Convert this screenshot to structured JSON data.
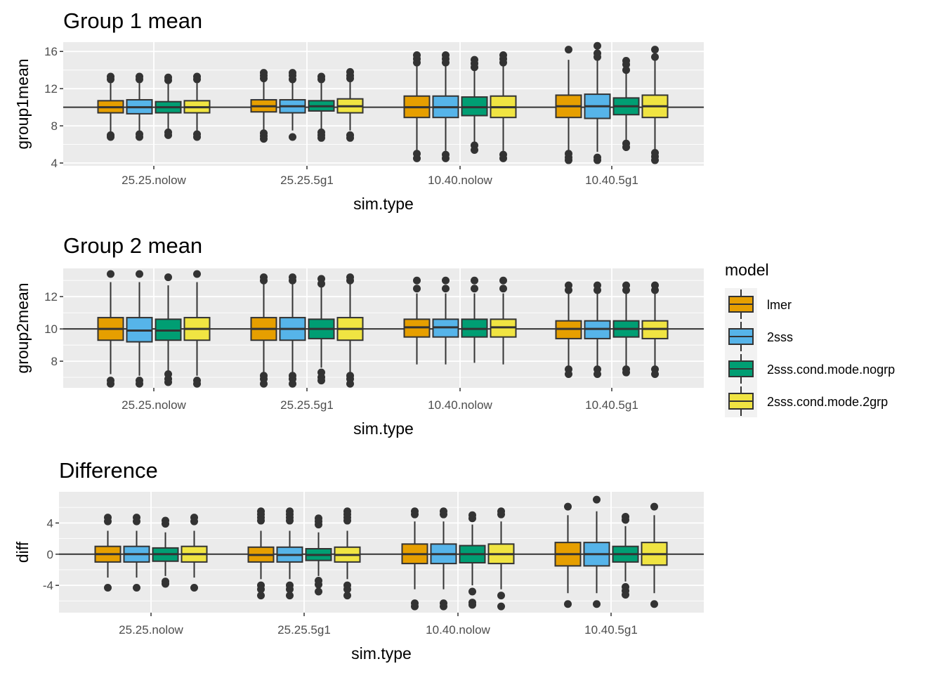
{
  "legend": {
    "title": "model",
    "items": [
      {
        "label": "lmer",
        "color": "#E69F00"
      },
      {
        "label": "2sss",
        "color": "#56B4E9"
      },
      {
        "label": "2sss.cond.mode.nogrp",
        "color": "#009E73"
      },
      {
        "label": "2sss.cond.mode.2grp",
        "color": "#F0E442"
      }
    ]
  },
  "chart_data": [
    {
      "type": "boxplot",
      "title": "Group 1 mean",
      "xlabel": "sim.type",
      "ylabel": "group1mean",
      "ylim": [
        3.7,
        17.0
      ],
      "yticks": [
        4,
        8,
        12,
        16
      ],
      "ytick_labels": [
        "4",
        "8",
        "12",
        "16"
      ],
      "reference_line": 10,
      "grid": true,
      "categories": [
        "25.25.nolow",
        "25.25.5g1",
        "10.40.nolow",
        "10.40.5g1"
      ],
      "series": [
        {
          "name": "lmer",
          "boxes": [
            {
              "whisker_low": 7.4,
              "q1": 9.4,
              "median": 10.0,
              "q3": 10.7,
              "whisker_high": 12.6,
              "outliers": [
                13.3,
                13.0,
                7.0,
                6.8
              ]
            },
            {
              "whisker_low": 7.6,
              "q1": 9.5,
              "median": 10.1,
              "q3": 10.8,
              "whisker_high": 12.8,
              "outliers": [
                13.7,
                13.4,
                13.1,
                7.2,
                6.9,
                6.6
              ]
            },
            {
              "whisker_low": 5.3,
              "q1": 8.9,
              "median": 10.0,
              "q3": 11.2,
              "whisker_high": 14.6,
              "outliers": [
                15.6,
                15.2,
                14.8,
                5.0,
                4.5
              ]
            },
            {
              "whisker_low": 5.3,
              "q1": 8.9,
              "median": 10.1,
              "q3": 11.3,
              "whisker_high": 15.1,
              "outliers": [
                16.2,
                5.0,
                4.6,
                4.3
              ]
            }
          ]
        },
        {
          "name": "2sss",
          "boxes": [
            {
              "whisker_low": 7.4,
              "q1": 9.3,
              "median": 10.0,
              "q3": 10.8,
              "whisker_high": 12.6,
              "outliers": [
                13.3,
                13.0,
                7.1,
                6.8
              ]
            },
            {
              "whisker_low": 7.5,
              "q1": 9.4,
              "median": 10.1,
              "q3": 10.8,
              "whisker_high": 12.8,
              "outliers": [
                13.7,
                13.4,
                13.0,
                6.8
              ]
            },
            {
              "whisker_low": 5.3,
              "q1": 8.9,
              "median": 10.0,
              "q3": 11.2,
              "whisker_high": 14.6,
              "outliers": [
                15.6,
                15.2,
                14.8,
                4.9,
                4.5
              ]
            },
            {
              "whisker_low": 5.2,
              "q1": 8.8,
              "median": 10.1,
              "q3": 11.4,
              "whisker_high": 15.1,
              "outliers": [
                16.6,
                15.8,
                15.4,
                4.6,
                4.3
              ]
            }
          ]
        },
        {
          "name": "2sss.cond.mode.nogrp",
          "boxes": [
            {
              "whisker_low": 7.6,
              "q1": 9.4,
              "median": 10.0,
              "q3": 10.6,
              "whisker_high": 12.5,
              "outliers": [
                13.2,
                12.9,
                7.3,
                7.0
              ]
            },
            {
              "whisker_low": 7.7,
              "q1": 9.6,
              "median": 10.1,
              "q3": 10.7,
              "whisker_high": 12.6,
              "outliers": [
                13.3,
                13.0,
                7.3,
                7.0,
                6.7
              ]
            },
            {
              "whisker_low": 6.2,
              "q1": 9.1,
              "median": 10.0,
              "q3": 11.1,
              "whisker_high": 14.0,
              "outliers": [
                15.1,
                14.7,
                14.3,
                5.9,
                5.4
              ]
            },
            {
              "whisker_low": 6.5,
              "q1": 9.2,
              "median": 10.1,
              "q3": 11.0,
              "whisker_high": 13.8,
              "outliers": [
                15.0,
                14.6,
                14.0,
                6.1,
                5.7
              ]
            }
          ]
        },
        {
          "name": "2sss.cond.mode.2grp",
          "boxes": [
            {
              "whisker_low": 7.4,
              "q1": 9.4,
              "median": 10.0,
              "q3": 10.7,
              "whisker_high": 12.6,
              "outliers": [
                13.3,
                13.0,
                7.1,
                6.8
              ]
            },
            {
              "whisker_low": 7.5,
              "q1": 9.4,
              "median": 10.1,
              "q3": 10.9,
              "whisker_high": 12.9,
              "outliers": [
                13.8,
                13.4,
                13.1,
                7.0,
                6.7
              ]
            },
            {
              "whisker_low": 5.3,
              "q1": 8.9,
              "median": 10.0,
              "q3": 11.2,
              "whisker_high": 14.6,
              "outliers": [
                15.6,
                15.2,
                14.8,
                4.9,
                4.5
              ]
            },
            {
              "whisker_low": 5.3,
              "q1": 8.9,
              "median": 10.1,
              "q3": 11.3,
              "whisker_high": 15.1,
              "outliers": [
                16.2,
                15.4,
                5.1,
                4.7,
                4.3
              ]
            }
          ]
        }
      ]
    },
    {
      "type": "boxplot",
      "title": "Group 2 mean",
      "xlabel": "sim.type",
      "ylabel": "group2mean",
      "ylim": [
        6.35,
        13.75
      ],
      "yticks": [
        8,
        10,
        12
      ],
      "ytick_labels": [
        "8",
        "10",
        "12"
      ],
      "reference_line": 10,
      "grid": true,
      "categories": [
        "25.25.nolow",
        "25.25.5g1",
        "10.40.nolow",
        "10.40.5g1"
      ],
      "series": [
        {
          "name": "lmer",
          "boxes": [
            {
              "whisker_low": 7.2,
              "q1": 9.3,
              "median": 10.0,
              "q3": 10.7,
              "whisker_high": 12.9,
              "outliers": [
                13.4,
                6.8,
                6.6
              ]
            },
            {
              "whisker_low": 7.3,
              "q1": 9.3,
              "median": 10.0,
              "q3": 10.7,
              "whisker_high": 12.8,
              "outliers": [
                13.2,
                13.0,
                7.1,
                6.9,
                6.6
              ]
            },
            {
              "whisker_low": 7.8,
              "q1": 9.5,
              "median": 10.1,
              "q3": 10.6,
              "whisker_high": 12.2,
              "outliers": [
                13.0,
                12.5
              ]
            },
            {
              "whisker_low": 7.7,
              "q1": 9.4,
              "median": 10.0,
              "q3": 10.5,
              "whisker_high": 12.2,
              "outliers": [
                12.7,
                12.4,
                7.5,
                7.2
              ]
            }
          ]
        },
        {
          "name": "2sss",
          "boxes": [
            {
              "whisker_low": 7.1,
              "q1": 9.2,
              "median": 9.9,
              "q3": 10.7,
              "whisker_high": 12.9,
              "outliers": [
                13.4,
                6.8,
                6.6
              ]
            },
            {
              "whisker_low": 7.2,
              "q1": 9.3,
              "median": 10.0,
              "q3": 10.7,
              "whisker_high": 12.8,
              "outliers": [
                13.2,
                13.0,
                7.1,
                6.9,
                6.6
              ]
            },
            {
              "whisker_low": 7.8,
              "q1": 9.5,
              "median": 10.1,
              "q3": 10.6,
              "whisker_high": 12.2,
              "outliers": [
                13.0,
                12.5
              ]
            },
            {
              "whisker_low": 7.7,
              "q1": 9.4,
              "median": 10.0,
              "q3": 10.5,
              "whisker_high": 12.2,
              "outliers": [
                12.7,
                12.4,
                7.5,
                7.2
              ]
            }
          ]
        },
        {
          "name": "2sss.cond.mode.nogrp",
          "boxes": [
            {
              "whisker_low": 7.4,
              "q1": 9.3,
              "median": 9.9,
              "q3": 10.6,
              "whisker_high": 12.7,
              "outliers": [
                13.2,
                7.2,
                6.9,
                6.7
              ]
            },
            {
              "whisker_low": 7.6,
              "q1": 9.4,
              "median": 10.0,
              "q3": 10.6,
              "whisker_high": 12.6,
              "outliers": [
                13.1,
                12.8,
                7.3,
                7.0,
                6.8
              ]
            },
            {
              "whisker_low": 7.9,
              "q1": 9.5,
              "median": 10.0,
              "q3": 10.6,
              "whisker_high": 12.2,
              "outliers": [
                13.0,
                12.5
              ]
            },
            {
              "whisker_low": 7.7,
              "q1": 9.5,
              "median": 10.0,
              "q3": 10.5,
              "whisker_high": 12.2,
              "outliers": [
                12.7,
                12.4,
                7.5,
                7.3
              ]
            }
          ]
        },
        {
          "name": "2sss.cond.mode.2grp",
          "boxes": [
            {
              "whisker_low": 7.1,
              "q1": 9.3,
              "median": 10.0,
              "q3": 10.7,
              "whisker_high": 12.9,
              "outliers": [
                13.4,
                6.8,
                6.6
              ]
            },
            {
              "whisker_low": 7.2,
              "q1": 9.3,
              "median": 10.0,
              "q3": 10.7,
              "whisker_high": 12.8,
              "outliers": [
                13.2,
                13.0,
                7.1,
                6.9,
                6.6
              ]
            },
            {
              "whisker_low": 7.8,
              "q1": 9.5,
              "median": 10.1,
              "q3": 10.6,
              "whisker_high": 12.2,
              "outliers": [
                13.0,
                12.5
              ]
            },
            {
              "whisker_low": 7.7,
              "q1": 9.4,
              "median": 10.0,
              "q3": 10.5,
              "whisker_high": 12.2,
              "outliers": [
                12.7,
                12.4,
                7.5,
                7.2
              ]
            }
          ]
        }
      ]
    },
    {
      "type": "boxplot",
      "title": "Difference",
      "xlabel": "sim.type",
      "ylabel": "diff",
      "ylim": [
        -7.5,
        8.0
      ],
      "yticks": [
        -4,
        0,
        4
      ],
      "ytick_labels": [
        "-4",
        "0",
        "4"
      ],
      "reference_line": 0,
      "grid": true,
      "categories": [
        "25.25.nolow",
        "25.25.5g1",
        "10.40.nolow",
        "10.40.5g1"
      ],
      "series": [
        {
          "name": "lmer",
          "boxes": [
            {
              "whisker_low": -3.0,
              "q1": -1.0,
              "median": 0.0,
              "q3": 1.0,
              "whisker_high": 3.0,
              "outliers": [
                4.7,
                4.2,
                -4.3
              ]
            },
            {
              "whisker_low": -3.2,
              "q1": -1.0,
              "median": -0.1,
              "q3": 0.9,
              "whisker_high": 3.0,
              "outliers": [
                5.5,
                5.1,
                4.7,
                4.3,
                -4.0,
                -4.5,
                -5.3
              ]
            },
            {
              "whisker_low": -4.5,
              "q1": -1.2,
              "median": 0.0,
              "q3": 1.3,
              "whisker_high": 4.2,
              "outliers": [
                5.5,
                5.1,
                -6.3,
                -6.7
              ]
            },
            {
              "whisker_low": -5.0,
              "q1": -1.5,
              "median": 0.0,
              "q3": 1.5,
              "whisker_high": 5.0,
              "outliers": [
                6.1,
                -6.4
              ]
            }
          ]
        },
        {
          "name": "2sss",
          "boxes": [
            {
              "whisker_low": -3.0,
              "q1": -1.0,
              "median": 0.0,
              "q3": 1.0,
              "whisker_high": 3.0,
              "outliers": [
                4.7,
                4.2,
                -4.3
              ]
            },
            {
              "whisker_low": -3.2,
              "q1": -1.0,
              "median": -0.1,
              "q3": 0.9,
              "whisker_high": 3.0,
              "outliers": [
                5.5,
                5.1,
                4.7,
                4.3,
                -4.0,
                -4.5,
                -5.3
              ]
            },
            {
              "whisker_low": -4.5,
              "q1": -1.2,
              "median": 0.0,
              "q3": 1.3,
              "whisker_high": 4.2,
              "outliers": [
                5.5,
                5.1,
                -6.3,
                -6.7
              ]
            },
            {
              "whisker_low": -5.0,
              "q1": -1.5,
              "median": 0.0,
              "q3": 1.5,
              "whisker_high": 5.5,
              "outliers": [
                7.0,
                -6.4
              ]
            }
          ]
        },
        {
          "name": "2sss.cond.mode.nogrp",
          "boxes": [
            {
              "whisker_low": -2.8,
              "q1": -0.9,
              "median": 0.0,
              "q3": 0.8,
              "whisker_high": 2.8,
              "outliers": [
                4.3,
                3.9,
                -3.5,
                -3.8
              ]
            },
            {
              "whisker_low": -2.8,
              "q1": -0.8,
              "median": -0.1,
              "q3": 0.7,
              "whisker_high": 2.8,
              "outliers": [
                4.6,
                4.2,
                3.8,
                -3.4,
                -3.9,
                -4.8
              ]
            },
            {
              "whisker_low": -4.0,
              "q1": -1.1,
              "median": 0.0,
              "q3": 1.1,
              "whisker_high": 3.8,
              "outliers": [
                5.0,
                4.6,
                -4.8,
                -6.2,
                -6.5
              ]
            },
            {
              "whisker_low": -3.5,
              "q1": -1.0,
              "median": 0.0,
              "q3": 1.0,
              "whisker_high": 3.6,
              "outliers": [
                4.8,
                4.4,
                -4.2,
                -4.7,
                -5.2
              ]
            }
          ]
        },
        {
          "name": "2sss.cond.mode.2grp",
          "boxes": [
            {
              "whisker_low": -3.0,
              "q1": -1.0,
              "median": 0.0,
              "q3": 1.0,
              "whisker_high": 3.0,
              "outliers": [
                4.7,
                4.2,
                -4.3
              ]
            },
            {
              "whisker_low": -3.2,
              "q1": -1.0,
              "median": -0.1,
              "q3": 0.9,
              "whisker_high": 3.0,
              "outliers": [
                5.5,
                5.1,
                4.7,
                4.3,
                -4.0,
                -4.5,
                -5.3
              ]
            },
            {
              "whisker_low": -4.5,
              "q1": -1.2,
              "median": 0.0,
              "q3": 1.3,
              "whisker_high": 4.2,
              "outliers": [
                5.5,
                5.1,
                -5.3,
                -6.7
              ]
            },
            {
              "whisker_low": -5.0,
              "q1": -1.4,
              "median": 0.0,
              "q3": 1.5,
              "whisker_high": 5.0,
              "outliers": [
                6.1,
                -6.4
              ]
            }
          ]
        }
      ]
    }
  ]
}
